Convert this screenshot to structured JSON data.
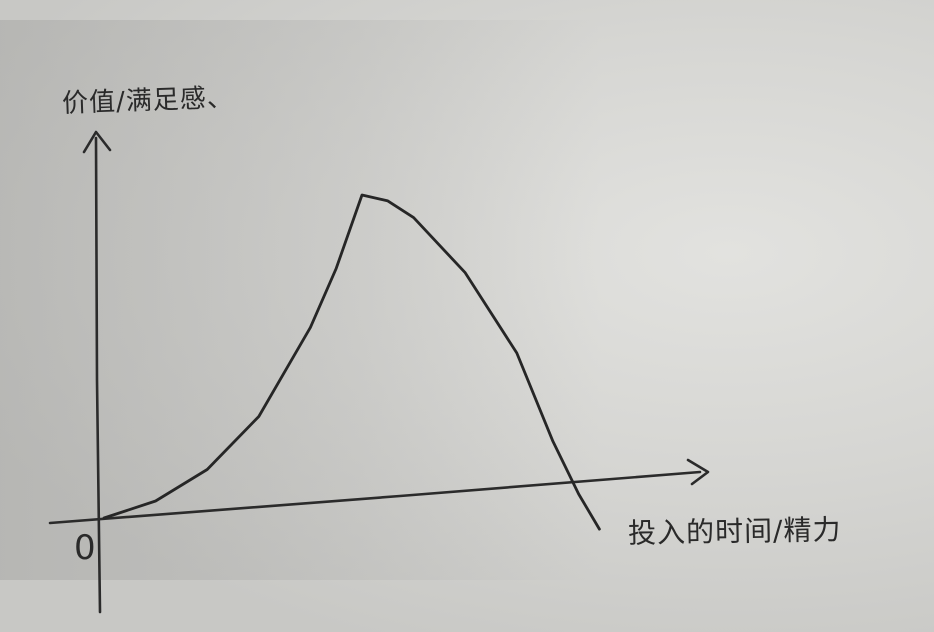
{
  "chart_data": {
    "type": "line",
    "xlabel": "投入的时间/精力",
    "ylabel": "价值/满足感、",
    "origin_label": "0",
    "grid": false,
    "legend": "none",
    "xlim": [
      0,
      10
    ],
    "ylim": [
      -1.2,
      10
    ],
    "series": [
      {
        "x": [
          0,
          1,
          2,
          3,
          4,
          4.5,
          5,
          5.5,
          6,
          7,
          8,
          8.7,
          9.2,
          9.6
        ],
        "y": [
          0,
          0.4,
          1.2,
          2.6,
          5.0,
          6.6,
          8.6,
          8.4,
          7.9,
          6.3,
          4.0,
          1.5,
          0,
          -1.0
        ]
      }
    ]
  }
}
